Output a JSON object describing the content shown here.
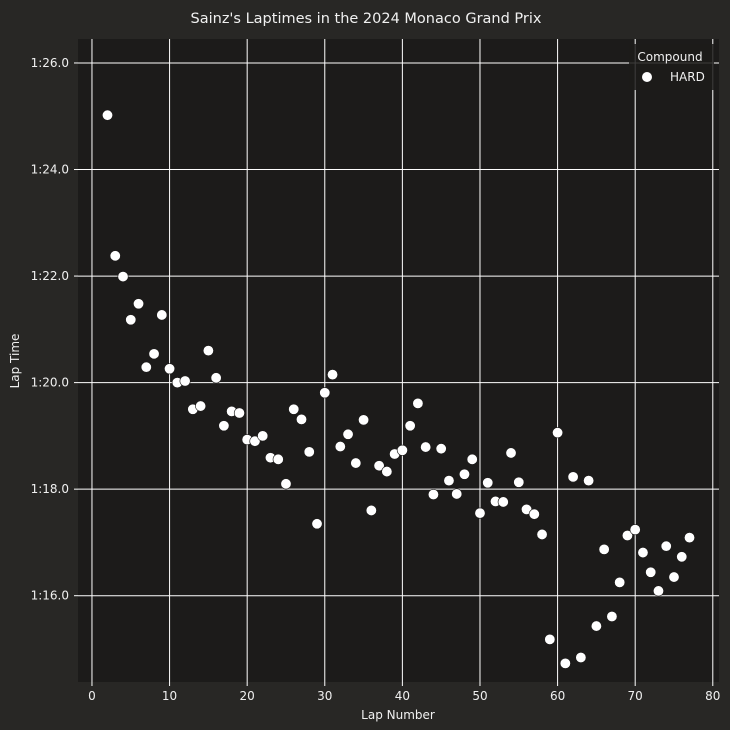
{
  "chart_data": {
    "type": "scatter",
    "title": "Sainz's Laptimes in the 2024 Monaco Grand Prix",
    "xlabel": "Lap Number",
    "ylabel": "Lap Time",
    "xlim": [
      -1.8,
      80.8
    ],
    "ylim": [
      74.38,
      86.45
    ],
    "xticks": [
      0,
      10,
      20,
      30,
      40,
      50,
      60,
      70,
      80
    ],
    "yticks": [
      {
        "value": 76,
        "label": "1:16.0"
      },
      {
        "value": 78,
        "label": "1:18.0"
      },
      {
        "value": 80,
        "label": "1:20.0"
      },
      {
        "value": 82,
        "label": "1:22.0"
      },
      {
        "value": 84,
        "label": "1:24.0"
      },
      {
        "value": 86,
        "label": "1:26.0"
      }
    ],
    "grid": true,
    "legend": {
      "title": "Compound",
      "position": "top-right"
    },
    "series": [
      {
        "name": "HARD",
        "color": "#ffffff",
        "points": [
          [
            2,
            85.02
          ],
          [
            3,
            82.38
          ],
          [
            4,
            81.99
          ],
          [
            5,
            81.18
          ],
          [
            6,
            81.48
          ],
          [
            7,
            80.29
          ],
          [
            8,
            80.54
          ],
          [
            9,
            81.27
          ],
          [
            10,
            80.26
          ],
          [
            11,
            80.0
          ],
          [
            12,
            80.03
          ],
          [
            13,
            79.5
          ],
          [
            14,
            79.56
          ],
          [
            15,
            80.6
          ],
          [
            16,
            80.09
          ],
          [
            17,
            79.19
          ],
          [
            18,
            79.46
          ],
          [
            19,
            79.43
          ],
          [
            20,
            78.93
          ],
          [
            21,
            78.9
          ],
          [
            22,
            79.0
          ],
          [
            23,
            78.59
          ],
          [
            24,
            78.56
          ],
          [
            25,
            78.1
          ],
          [
            26,
            79.5
          ],
          [
            27,
            79.31
          ],
          [
            28,
            78.7
          ],
          [
            29,
            77.35
          ],
          [
            30,
            79.81
          ],
          [
            31,
            80.15
          ],
          [
            32,
            78.8
          ],
          [
            33,
            79.03
          ],
          [
            34,
            78.49
          ],
          [
            35,
            79.3
          ],
          [
            36,
            77.6
          ],
          [
            37,
            78.44
          ],
          [
            38,
            78.33
          ],
          [
            39,
            78.66
          ],
          [
            40,
            78.73
          ],
          [
            41,
            79.19
          ],
          [
            42,
            79.61
          ],
          [
            43,
            78.79
          ],
          [
            44,
            77.9
          ],
          [
            45,
            78.76
          ],
          [
            46,
            78.16
          ],
          [
            47,
            77.91
          ],
          [
            48,
            78.28
          ],
          [
            49,
            78.56
          ],
          [
            50,
            77.55
          ],
          [
            51,
            78.12
          ],
          [
            52,
            77.77
          ],
          [
            53,
            77.76
          ],
          [
            54,
            78.68
          ],
          [
            55,
            78.13
          ],
          [
            56,
            77.62
          ],
          [
            57,
            77.53
          ],
          [
            58,
            77.15
          ],
          [
            59,
            75.18
          ],
          [
            60,
            79.06
          ],
          [
            61,
            74.73
          ],
          [
            62,
            78.23
          ],
          [
            63,
            74.84
          ],
          [
            64,
            78.16
          ],
          [
            65,
            75.43
          ],
          [
            66,
            76.87
          ],
          [
            67,
            75.61
          ],
          [
            68,
            76.25
          ],
          [
            69,
            77.13
          ],
          [
            70,
            77.24
          ],
          [
            71,
            76.81
          ],
          [
            72,
            76.44
          ],
          [
            73,
            76.09
          ],
          [
            74,
            76.93
          ],
          [
            75,
            76.35
          ],
          [
            76,
            76.73
          ],
          [
            77,
            77.09
          ]
        ]
      }
    ]
  }
}
